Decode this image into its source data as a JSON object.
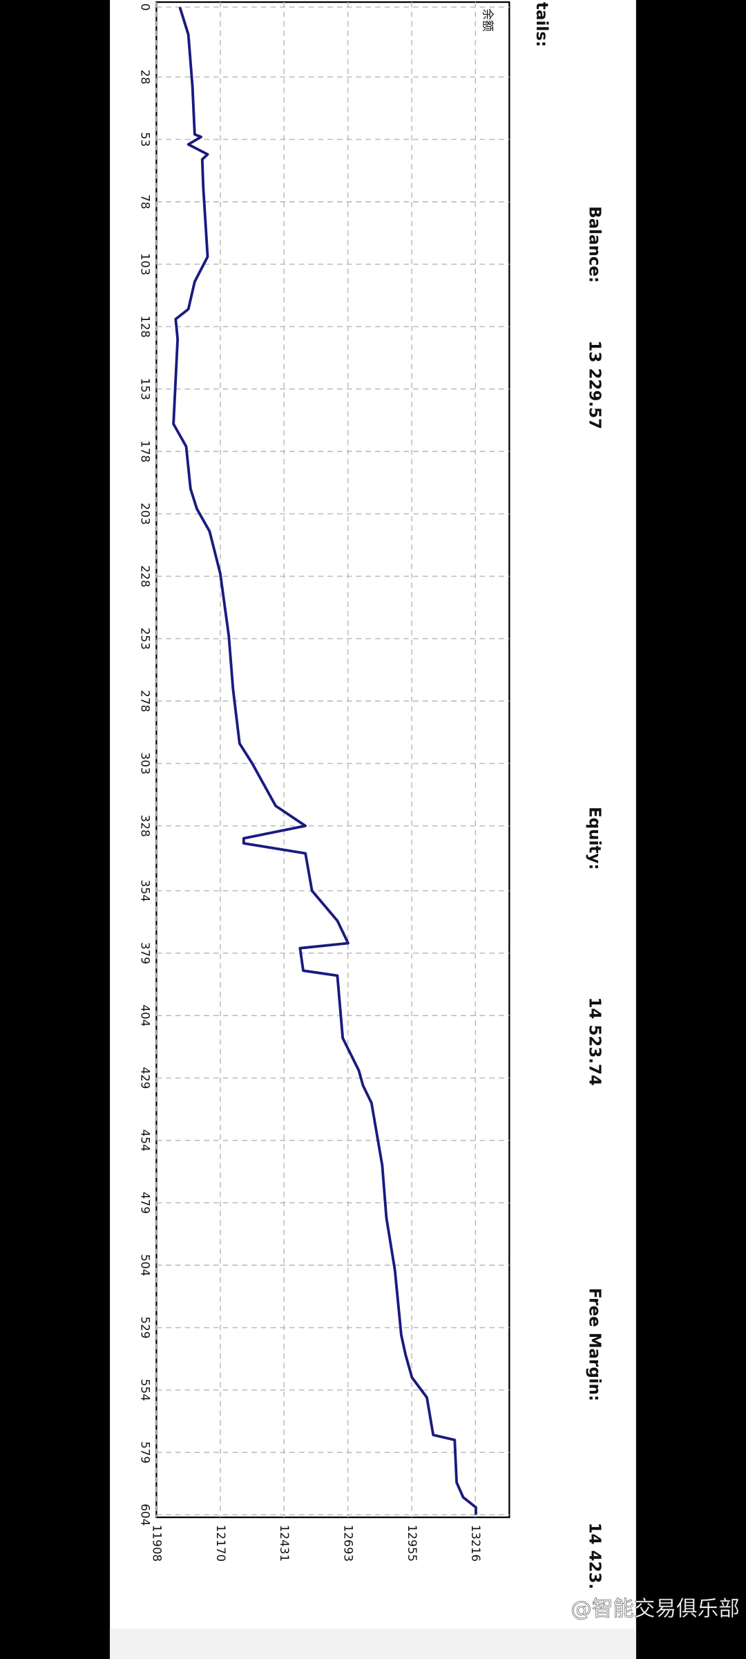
{
  "chart_data": {
    "type": "line",
    "header": "tails:",
    "legend_label": "余额",
    "account": {
      "balance_label": "Balance:",
      "balance": "13 229.57",
      "equity_label": "Equity:",
      "equity": "14 523.74",
      "free_margin_label": "Free Margin:",
      "free_margin": "14 423."
    },
    "watermark": "@智能交易俱乐部",
    "x": [
      0,
      11,
      32,
      51,
      52,
      55,
      59,
      61,
      72,
      100,
      110,
      121,
      125,
      133,
      167,
      176,
      193,
      201,
      210,
      227,
      252,
      273,
      295,
      303,
      320,
      328,
      333,
      335,
      339,
      354,
      366,
      375,
      377,
      386,
      388,
      413,
      426,
      432,
      439,
      464,
      485,
      506,
      532,
      540,
      549,
      557,
      572,
      574,
      591,
      597,
      601,
      604
    ],
    "series": [
      {
        "name": "余额",
        "color": "#1a1a80",
        "values": [
          12004,
          12039,
          12056,
          12065,
          12091,
          12039,
          12118,
          12096,
          12100,
          12118,
          12065,
          12039,
          11987,
          11995,
          11978,
          12030,
          12048,
          12074,
          12126,
          12170,
          12205,
          12222,
          12249,
          12301,
          12397,
          12519,
          12266,
          12266,
          12519,
          12546,
          12650,
          12694,
          12497,
          12510,
          12650,
          12672,
          12738,
          12755,
          12790,
          12834,
          12851,
          12886,
          12912,
          12930,
          12956,
          13017,
          13043,
          13131,
          13139,
          13166,
          13218,
          13218
        ]
      }
    ],
    "xlim": [
      -2,
      605
    ],
    "xticks": [
      0,
      28,
      53,
      78,
      103,
      128,
      153,
      178,
      203,
      228,
      253,
      278,
      303,
      328,
      354,
      379,
      404,
      429,
      454,
      479,
      504,
      529,
      554,
      579,
      604
    ],
    "ylim": [
      11908,
      13355
    ],
    "yticks": [
      11908,
      12170,
      12431,
      12693,
      12955,
      13216
    ],
    "grid": true
  }
}
